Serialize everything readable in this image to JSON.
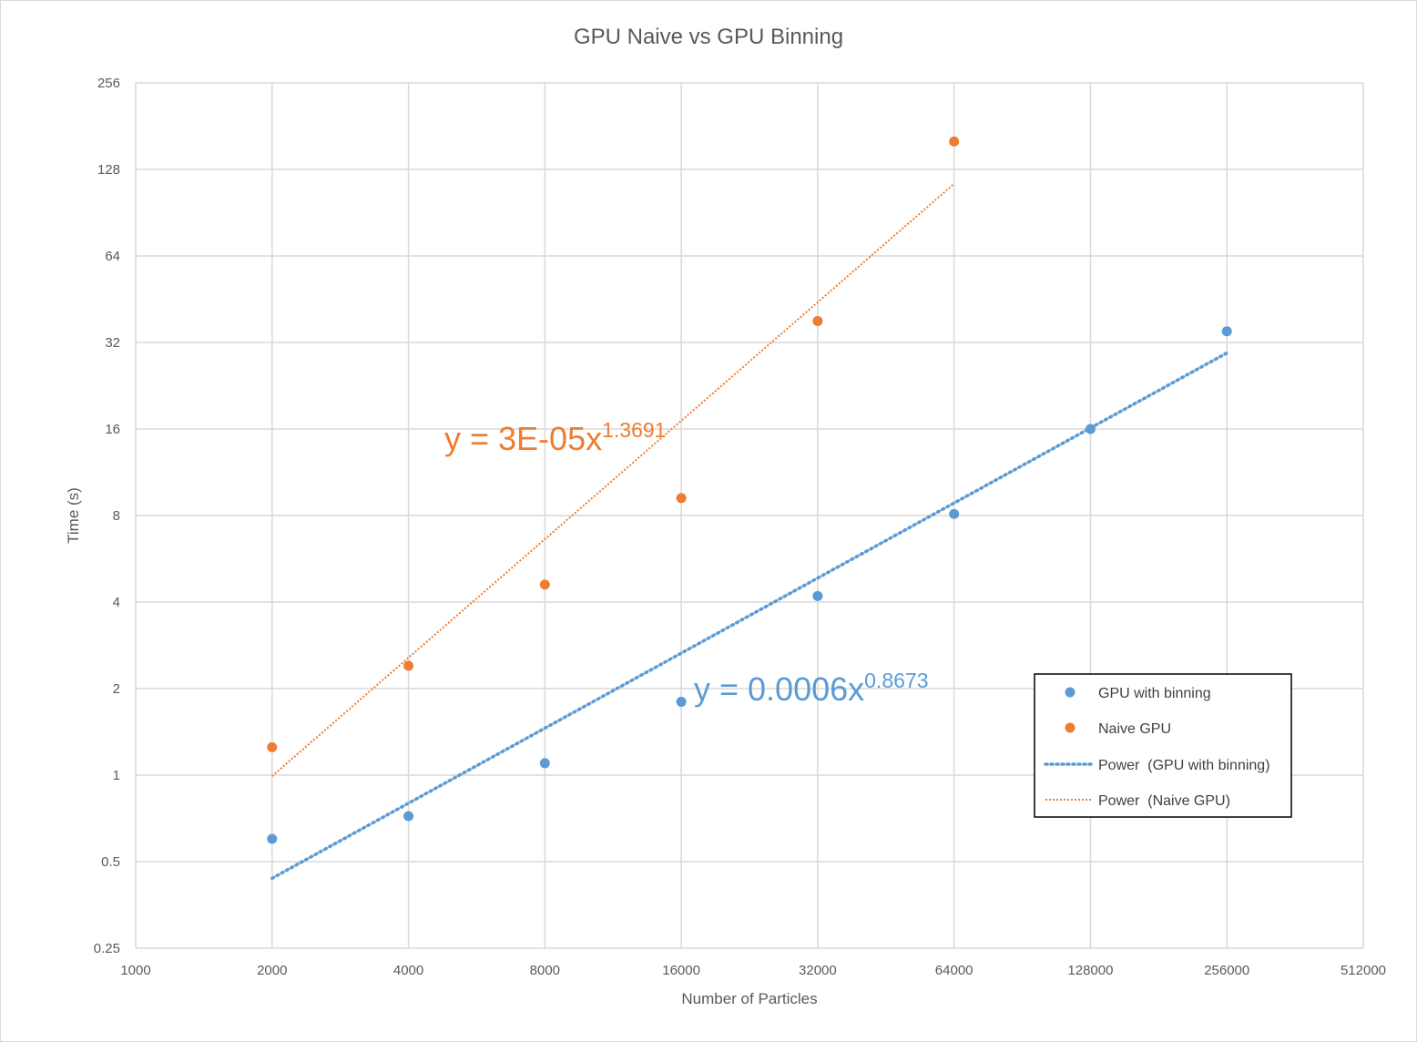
{
  "chart_data": {
    "type": "scatter",
    "title": "GPU Naive vs GPU Binning",
    "xlabel": "Number of Particles",
    "ylabel": "Time (s)",
    "x_scale": "log2",
    "y_scale": "log2",
    "xlim": [
      1000,
      512000
    ],
    "ylim": [
      0.25,
      256
    ],
    "x_ticks": [
      "1000",
      "2000",
      "4000",
      "8000",
      "16000",
      "32000",
      "64000",
      "128000",
      "256000",
      "512000"
    ],
    "x_tick_values": [
      1000,
      2000,
      4000,
      8000,
      16000,
      32000,
      64000,
      128000,
      256000,
      512000
    ],
    "y_ticks": [
      "0.25",
      "0.5",
      "1",
      "2",
      "4",
      "8",
      "16",
      "32",
      "64",
      "128",
      "256"
    ],
    "y_tick_values": [
      0.25,
      0.5,
      1,
      2,
      4,
      8,
      16,
      32,
      64,
      128,
      256
    ],
    "grid": true,
    "legend_position": "right",
    "series": [
      {
        "name": "GPU with binning",
        "color": "#5b9bd5",
        "x": [
          2000,
          4000,
          8000,
          16000,
          32000,
          64000,
          128000,
          256000
        ],
        "y": [
          0.6,
          0.72,
          1.1,
          1.8,
          4.2,
          8.1,
          16,
          35
        ]
      },
      {
        "name": "Naive GPU",
        "color": "#ed7d31",
        "x": [
          2000,
          4000,
          8000,
          16000,
          32000,
          64000
        ],
        "y": [
          1.25,
          2.4,
          4.6,
          9.2,
          38,
          160
        ]
      }
    ],
    "trendlines": [
      {
        "name": "Power  (GPU with binning)",
        "series": "GPU with binning",
        "kind": "power",
        "coefficient": 0.0006,
        "exponent": 0.8673,
        "x_range": [
          2000,
          256000
        ],
        "color": "#5b9bd5",
        "equation_base": "y = 0.0006x",
        "equation_exponent": "0.8673"
      },
      {
        "name": "Power  (Naive GPU)",
        "series": "Naive GPU",
        "kind": "power",
        "coefficient": 3e-05,
        "exponent": 1.3691,
        "x_range": [
          2000,
          64000
        ],
        "color": "#ed7d31",
        "equation_base": "y = 3E-05x",
        "equation_exponent": "1.3691"
      }
    ]
  }
}
